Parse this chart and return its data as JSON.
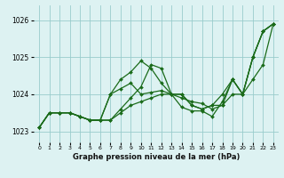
{
  "background_color": "#ddf2f2",
  "grid_color": "#99cccc",
  "line_color": "#1a6b1a",
  "xlim": [
    -0.5,
    23.5
  ],
  "ylim": [
    1022.7,
    1026.4
  ],
  "yticks": [
    1023,
    1024,
    1025,
    1026
  ],
  "xticks": [
    0,
    1,
    2,
    3,
    4,
    5,
    6,
    7,
    8,
    9,
    10,
    11,
    12,
    13,
    14,
    15,
    16,
    17,
    18,
    19,
    20,
    21,
    22,
    23
  ],
  "xlabel": "Graphe pression niveau de la mer (hPa)",
  "series": [
    [
      1023.1,
      1023.5,
      1023.5,
      1023.5,
      1023.4,
      1023.3,
      1023.3,
      1023.3,
      1023.6,
      1023.9,
      1024.2,
      1024.8,
      1024.7,
      1024.0,
      1024.0,
      1023.7,
      1023.6,
      1023.7,
      1023.7,
      1024.4,
      1024.0,
      1025.0,
      1025.7,
      1025.9
    ],
    [
      1023.1,
      1023.5,
      1023.5,
      1023.5,
      1023.4,
      1023.3,
      1023.3,
      1024.0,
      1024.4,
      1024.6,
      1024.9,
      1024.7,
      1024.3,
      1024.0,
      1024.0,
      1023.7,
      1023.6,
      1023.7,
      1024.0,
      1024.4,
      1024.0,
      1025.0,
      1025.7,
      1025.9
    ],
    [
      1023.1,
      1023.5,
      1023.5,
      1023.5,
      1023.4,
      1023.3,
      1023.3,
      1024.0,
      1024.15,
      1024.3,
      1024.0,
      1024.05,
      1024.1,
      1024.0,
      1023.65,
      1023.55,
      1023.55,
      1023.4,
      1023.8,
      1024.4,
      1024.0,
      1025.0,
      1025.7,
      1025.9
    ],
    [
      1023.1,
      1023.5,
      1023.5,
      1023.5,
      1023.4,
      1023.3,
      1023.3,
      1023.3,
      1023.5,
      1023.7,
      1023.8,
      1023.9,
      1024.0,
      1024.0,
      1023.9,
      1023.8,
      1023.75,
      1023.6,
      1023.7,
      1024.0,
      1024.0,
      1024.4,
      1024.8,
      1025.9
    ]
  ]
}
